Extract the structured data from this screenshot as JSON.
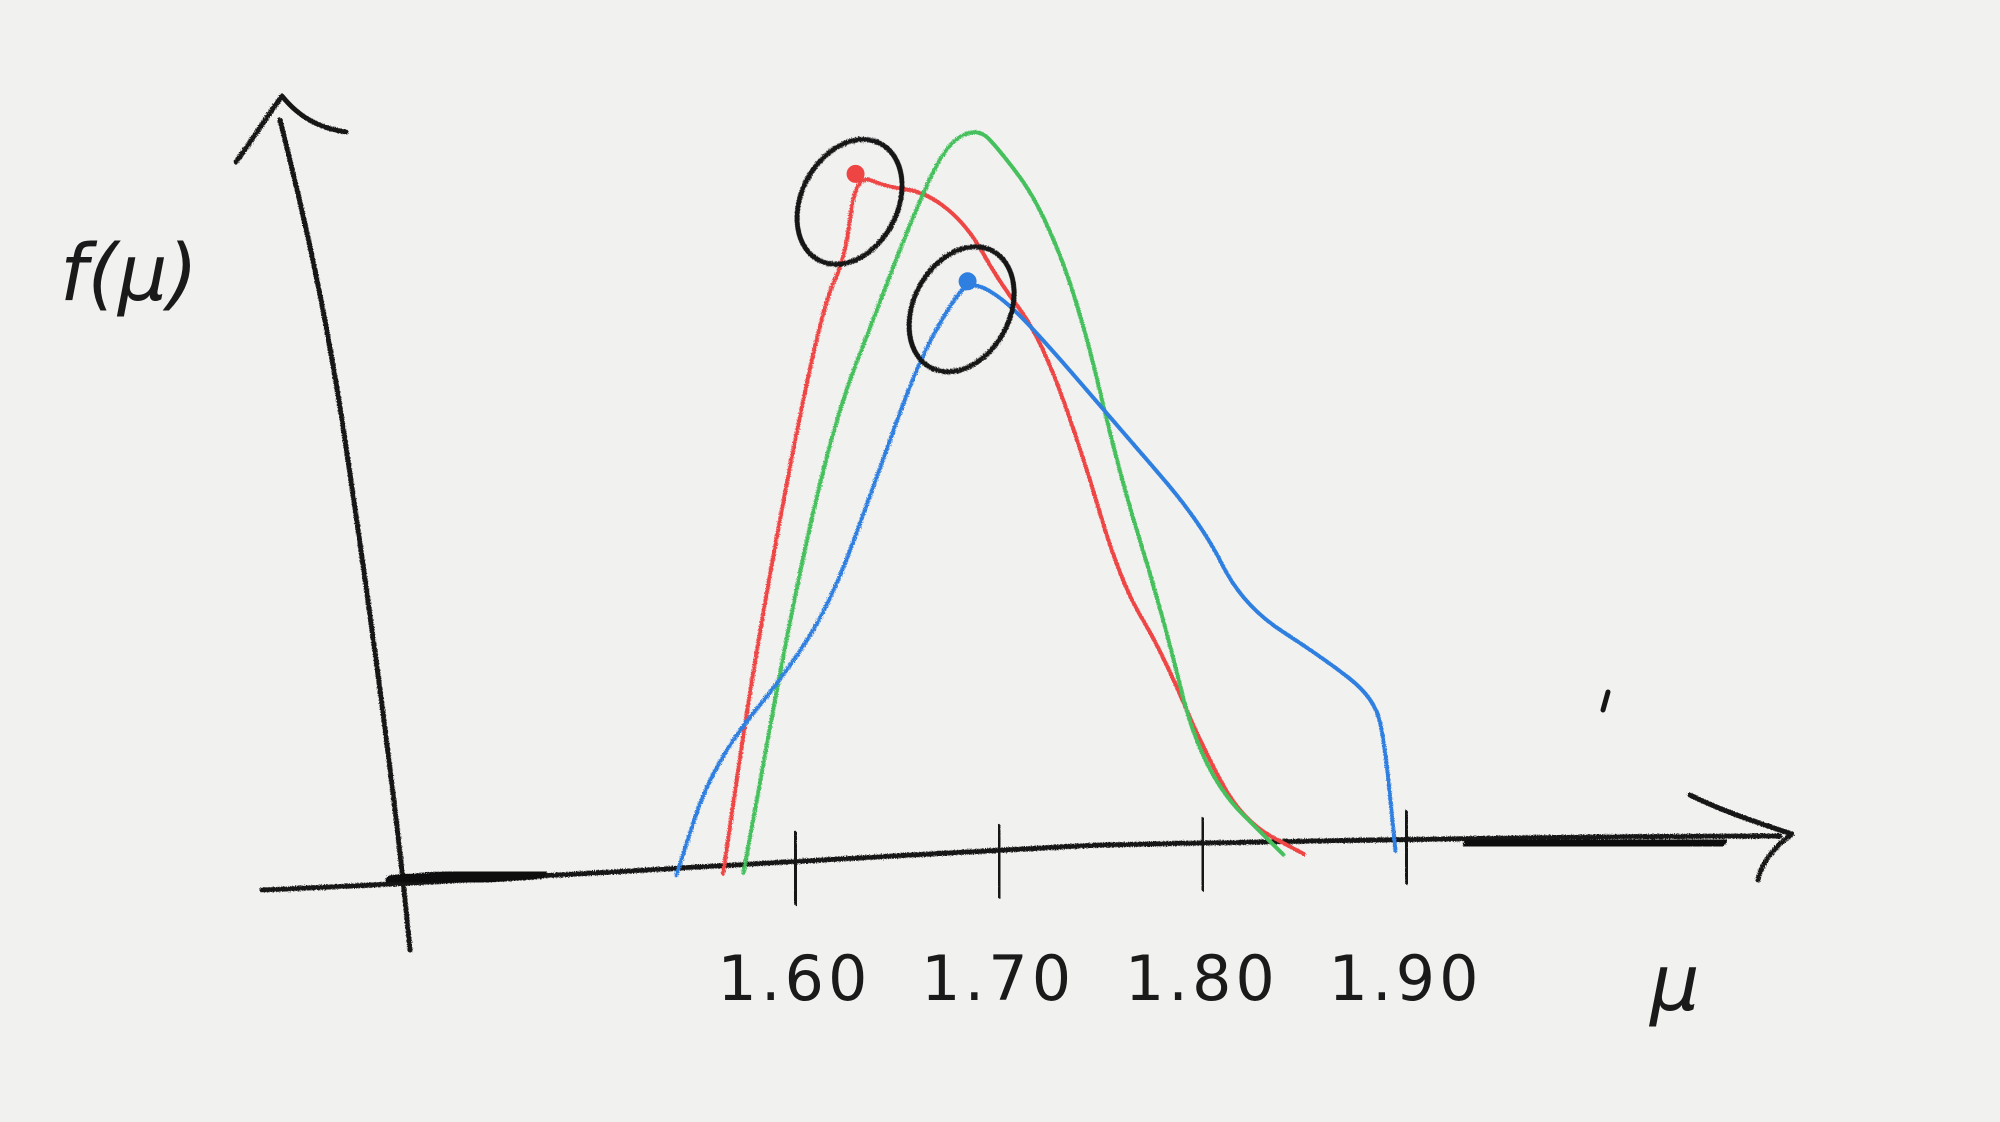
{
  "chart_data": {
    "type": "line",
    "title": "",
    "xlabel": "μ",
    "ylabel": "f(μ)",
    "x_ticks": [
      {
        "value": 1.6,
        "label": "1.60"
      },
      {
        "value": 1.7,
        "label": "1.70"
      },
      {
        "value": 1.8,
        "label": "1.80"
      },
      {
        "value": 1.9,
        "label": "1.90"
      }
    ],
    "xlim": [
      1.48,
      2.02
    ],
    "ylim": [
      0,
      1.05
    ],
    "grid": false,
    "legend": "none",
    "series": [
      {
        "color": "#ee4444",
        "x": [
          1.565,
          1.58,
          1.6,
          1.615,
          1.625,
          1.63,
          1.645,
          1.665,
          1.685,
          1.7,
          1.72,
          1.74,
          1.76,
          1.78,
          1.8,
          1.82,
          1.85
        ],
        "y": [
          0.0,
          0.3,
          0.62,
          0.82,
          0.88,
          1.0,
          0.98,
          0.97,
          0.92,
          0.84,
          0.76,
          0.6,
          0.4,
          0.3,
          0.16,
          0.05,
          0.0
        ],
        "marked_point": {
          "x": 1.63,
          "y": 1.0
        }
      },
      {
        "color": "#44c05c",
        "x": [
          1.575,
          1.6,
          1.62,
          1.64,
          1.66,
          1.675,
          1.69,
          1.7,
          1.72,
          1.74,
          1.76,
          1.78,
          1.8,
          1.84
        ],
        "y": [
          0.0,
          0.4,
          0.65,
          0.8,
          0.95,
          1.04,
          1.06,
          1.03,
          0.95,
          0.8,
          0.55,
          0.36,
          0.12,
          0.0
        ]
      },
      {
        "color": "#2f7fe0",
        "x": [
          1.542,
          1.56,
          1.6,
          1.62,
          1.64,
          1.66,
          1.675,
          1.685,
          1.7,
          1.72,
          1.76,
          1.8,
          1.82,
          1.86,
          1.885,
          1.89,
          1.895
        ],
        "y": [
          0.0,
          0.16,
          0.3,
          0.4,
          0.56,
          0.72,
          0.8,
          0.84,
          0.82,
          0.76,
          0.62,
          0.48,
          0.36,
          0.28,
          0.22,
          0.15,
          0.0
        ],
        "marked_point": {
          "x": 1.685,
          "y": 0.84
        }
      }
    ]
  }
}
